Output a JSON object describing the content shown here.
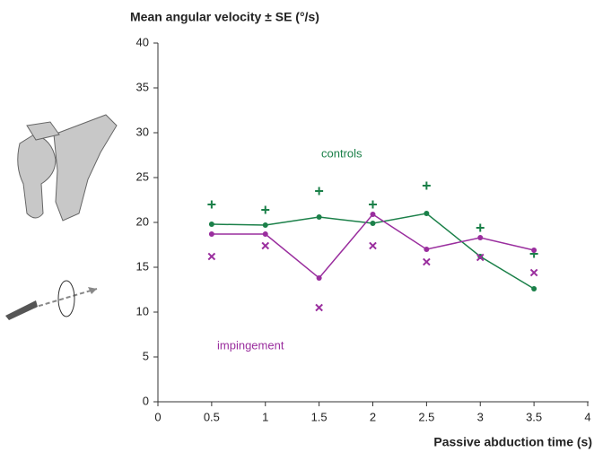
{
  "chart_data": {
    "type": "line",
    "title": "Mean angular velocity ± SE (°/s)",
    "x_label": "Passive abduction time (s)",
    "x": [
      0.5,
      1,
      1.5,
      2,
      2.5,
      3,
      3.5
    ],
    "series": [
      {
        "name": "controls",
        "color": "#1b8049",
        "marker": "plus",
        "values": [
          19.8,
          19.7,
          20.6,
          19.9,
          21.0,
          16.2,
          12.6
        ],
        "se_values": [
          22.0,
          21.4,
          23.5,
          22.0,
          24.1,
          19.4,
          16.5
        ]
      },
      {
        "name": "impingement",
        "color": "#9a2e9e",
        "marker": "cross",
        "values": [
          18.7,
          18.7,
          13.8,
          20.9,
          17.0,
          18.3,
          16.9
        ],
        "se_values": [
          16.2,
          17.4,
          10.5,
          17.4,
          15.6,
          16.1,
          14.4
        ]
      }
    ],
    "xlim": [
      0,
      4
    ],
    "xticks": [
      0,
      0.5,
      1,
      1.5,
      2,
      2.5,
      3,
      3.5,
      4
    ],
    "ylim": [
      0,
      40
    ],
    "yticks": [
      0,
      5,
      10,
      15,
      20,
      25,
      30,
      35,
      40
    ]
  }
}
